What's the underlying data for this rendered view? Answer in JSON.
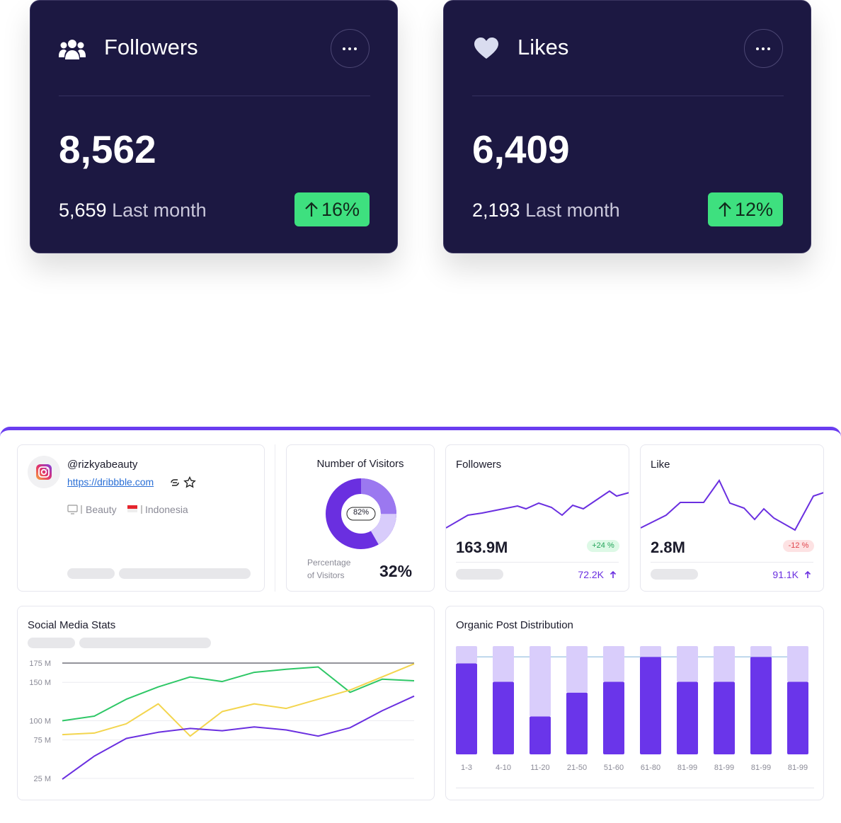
{
  "cards": [
    {
      "title": "Followers",
      "value": "8,562",
      "previous": "5,659",
      "previous_label": "Last month",
      "change": "16%"
    },
    {
      "title": "Likes",
      "value": "6,409",
      "previous": "2,193",
      "previous_label": "Last month",
      "change": "12%"
    }
  ],
  "profile": {
    "handle": "@rizkyabeauty",
    "link": "https://dribbble.com",
    "category": "Beauty",
    "country": "Indonesia"
  },
  "visitors": {
    "title": "Number of Visitors",
    "donut_label": "82%",
    "caption": [
      "Percentage",
      "of Visitors"
    ],
    "value": "32%"
  },
  "followers": {
    "title": "Followers",
    "value": "163.9M",
    "change": "+24 %",
    "sub": "72.2K"
  },
  "like": {
    "title": "Like",
    "value": "2.8M",
    "change": "-12 %",
    "sub": "91.1K"
  },
  "chart_data": [
    {
      "type": "line",
      "title": "Social Media Stats",
      "categories": [
        null,
        null,
        null,
        null,
        null,
        null,
        null,
        null,
        null,
        null,
        null,
        null
      ],
      "series": [
        {
          "color": "#2ec766",
          "values": [
            100,
            106,
            128,
            144,
            157,
            151,
            163,
            167,
            170,
            137,
            154,
            152
          ]
        },
        {
          "color": "#f3d54e",
          "values": [
            82,
            84,
            96,
            122,
            80,
            112,
            122,
            116,
            128,
            140,
            157,
            174
          ]
        },
        {
          "color": "#6a2fe0",
          "values": [
            24,
            54,
            77,
            85,
            90,
            87,
            92,
            88,
            80,
            91,
            113,
            132
          ]
        }
      ],
      "ylim": [
        20,
        180
      ],
      "yticks": [
        {
          "value": 25,
          "label": "25 M"
        },
        {
          "value": 75,
          "label": "75 M"
        },
        {
          "value": 100,
          "label": "100 M"
        },
        {
          "value": 150,
          "label": "150 M"
        },
        {
          "value": 175,
          "label": "175 M"
        }
      ],
      "grid": true
    },
    {
      "type": "bar",
      "stacked": true,
      "title": "Organic Post Distribution",
      "categories": [
        "1-3",
        "4-10",
        "11-20",
        "21-50",
        "51-60",
        "61-80",
        "81-99",
        "81-99",
        "81-99",
        "81-99"
      ],
      "series": [
        {
          "color": "#6a35ea",
          "values": [
            84,
            67,
            35,
            57,
            67,
            90,
            67,
            67,
            90,
            67
          ]
        },
        {
          "color": "#d9cdfb",
          "values": [
            16,
            33,
            65,
            43,
            33,
            10,
            33,
            33,
            10,
            33
          ]
        }
      ],
      "ylim": [
        0,
        100
      ],
      "reference_line": 90
    }
  ]
}
